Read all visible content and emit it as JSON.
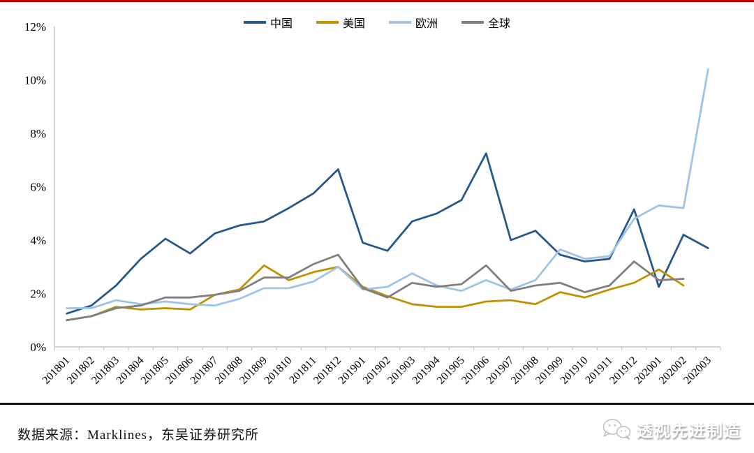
{
  "accent": {
    "top_bar_color": "#C00000",
    "axis_color": "#C6C6C6"
  },
  "footer": {
    "source_text": "数据来源：Marklines，东吴证券研究所",
    "watermark_text": "透视先进制造"
  },
  "chart_data": {
    "type": "line",
    "title": "",
    "xlabel": "",
    "ylabel": "",
    "ylim": [
      0,
      12
    ],
    "grid": false,
    "legend_position": "top",
    "y_ticks": [
      {
        "value": 0,
        "label": "0%"
      },
      {
        "value": 2,
        "label": "2%"
      },
      {
        "value": 4,
        "label": "4%"
      },
      {
        "value": 6,
        "label": "6%"
      },
      {
        "value": 8,
        "label": "8%"
      },
      {
        "value": 10,
        "label": "10%"
      },
      {
        "value": 12,
        "label": "12%"
      }
    ],
    "categories": [
      "201801",
      "201802",
      "201803",
      "201804",
      "201805",
      "201806",
      "201807",
      "201808",
      "201809",
      "201810",
      "201811",
      "201812",
      "201901",
      "201902",
      "201903",
      "201904",
      "201905",
      "201906",
      "201907",
      "201908",
      "201909",
      "201910",
      "201911",
      "201912",
      "202001",
      "202002",
      "202003"
    ],
    "series": [
      {
        "name": "中国",
        "color": "#27588A",
        "values": [
          1.25,
          1.55,
          2.3,
          3.3,
          4.05,
          3.5,
          4.25,
          4.55,
          4.7,
          5.2,
          5.75,
          6.65,
          3.9,
          3.6,
          4.7,
          5.0,
          5.5,
          7.25,
          4.0,
          4.35,
          3.45,
          3.2,
          3.3,
          5.15,
          2.25,
          4.2,
          3.7
        ]
      },
      {
        "name": "美国",
        "color": "#BF9000",
        "values": [
          1.0,
          1.15,
          1.5,
          1.4,
          1.45,
          1.4,
          1.95,
          2.15,
          3.05,
          2.5,
          2.8,
          3.0,
          2.25,
          1.9,
          1.6,
          1.5,
          1.5,
          1.7,
          1.75,
          1.6,
          2.05,
          1.85,
          2.15,
          2.4,
          2.9,
          2.3,
          null
        ]
      },
      {
        "name": "欧洲",
        "color": "#9DC3E6",
        "values": [
          1.45,
          1.45,
          1.75,
          1.6,
          1.7,
          1.6,
          1.55,
          1.8,
          2.2,
          2.2,
          2.45,
          3.0,
          2.15,
          2.25,
          2.75,
          2.3,
          2.1,
          2.5,
          2.15,
          2.5,
          3.65,
          3.3,
          3.4,
          4.8,
          5.3,
          5.2,
          10.4
        ]
      },
      {
        "name": "全球",
        "color": "#7F7F7F",
        "values": [
          1.0,
          1.15,
          1.45,
          1.55,
          1.85,
          1.85,
          1.95,
          2.1,
          2.6,
          2.6,
          3.1,
          3.45,
          2.2,
          1.85,
          2.4,
          2.25,
          2.35,
          3.05,
          2.1,
          2.3,
          2.4,
          2.05,
          2.3,
          3.2,
          2.5,
          2.55,
          null
        ]
      }
    ]
  }
}
